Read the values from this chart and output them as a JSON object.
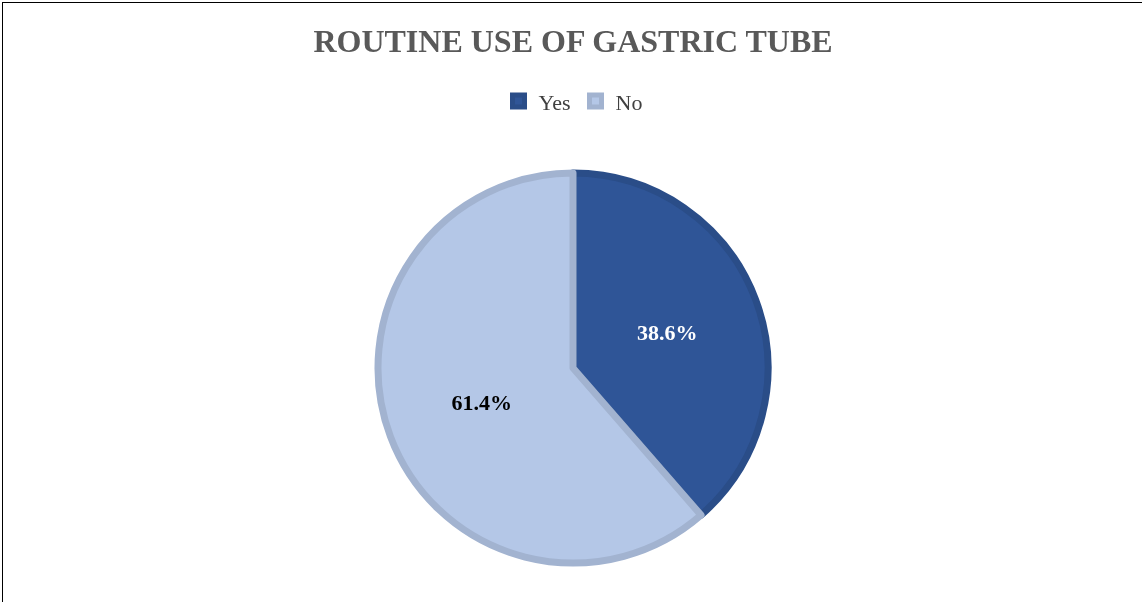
{
  "chart_data": {
    "type": "pie",
    "title": "ROUTINE USE OF GASTRIC TUBE",
    "categories": [
      "Yes",
      "No"
    ],
    "values": [
      38.6,
      61.4
    ],
    "colors": [
      "#2f5597",
      "#b4c7e7"
    ],
    "value_labels": [
      "38.6%",
      "61.4%"
    ],
    "legend": "top"
  }
}
